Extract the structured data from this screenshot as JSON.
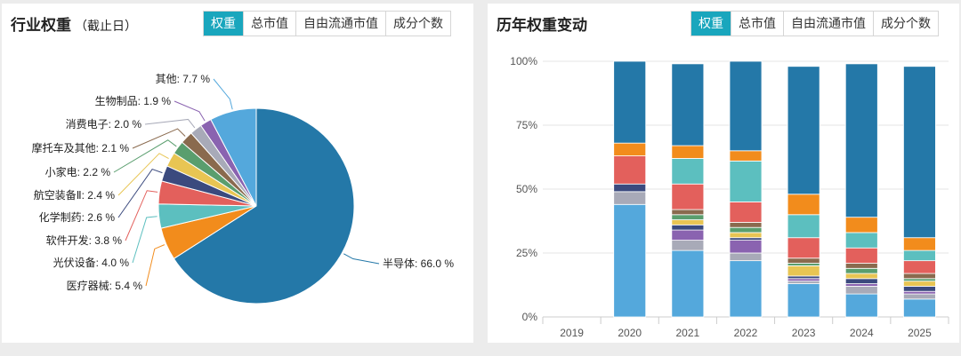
{
  "left_panel": {
    "title": "行业权重",
    "subtitle": "（截止日）",
    "tabs": [
      "权重",
      "总市值",
      "自由流通市值",
      "成分个数"
    ],
    "active_tab": 0
  },
  "right_panel": {
    "title": "历年权重变动",
    "tabs": [
      "权重",
      "总市值",
      "自由流通市值",
      "成分个数"
    ],
    "active_tab": 0
  },
  "chart_data": [
    {
      "type": "pie",
      "slices": [
        {
          "label": "半导体: 66.0 %",
          "value": 66.0,
          "color": "#2478a8"
        },
        {
          "label": "医疗器械: 5.4 %",
          "value": 5.4,
          "color": "#f28c1c"
        },
        {
          "label": "光伏设备: 4.0 %",
          "value": 4.0,
          "color": "#5cbfbf"
        },
        {
          "label": "软件开发: 3.8 %",
          "value": 3.8,
          "color": "#e3605c"
        },
        {
          "label": "化学制药: 2.6 %",
          "value": 2.6,
          "color": "#3b4a7e"
        },
        {
          "label": "航空装备Ⅱ: 2.4 %",
          "value": 2.4,
          "color": "#e8c553"
        },
        {
          "label": "小家电: 2.2 %",
          "value": 2.2,
          "color": "#5a9e6e"
        },
        {
          "label": "摩托车及其他: 2.1 %",
          "value": 2.1,
          "color": "#8a6a4e"
        },
        {
          "label": "消费电子: 2.0 %",
          "value": 2.0,
          "color": "#a8aab8"
        },
        {
          "label": "生物制品: 1.9 %",
          "value": 1.9,
          "color": "#8a63b0"
        },
        {
          "label": "其他: 7.7 %",
          "value": 7.7,
          "color": "#54a8dc"
        }
      ]
    },
    {
      "type": "bar",
      "stacked": true,
      "categories": [
        "2019",
        "2020",
        "2021",
        "2022",
        "2023",
        "2024",
        "2025"
      ],
      "y_ticks": [
        "0%",
        "25%",
        "50%",
        "75%",
        "100%"
      ],
      "ylim": [
        0,
        100
      ],
      "grid": "horizontal",
      "segment_colors": [
        "#54a8dc",
        "#a8aab8",
        "#8a63b0",
        "#3b4a7e",
        "#e8c553",
        "#5a9e6e",
        "#8a6a4e",
        "#e3605c",
        "#5cbfbf",
        "#f28c1c",
        "#2478a8"
      ],
      "stacks": [
        [],
        [
          44,
          5,
          0,
          3,
          0,
          0,
          0,
          11,
          0,
          5,
          32
        ],
        [
          26,
          4,
          4,
          2,
          2,
          2,
          2,
          10,
          10,
          5,
          32
        ],
        [
          22,
          3,
          5,
          1,
          2,
          2,
          2,
          8,
          16,
          4,
          35
        ],
        [
          13,
          1,
          1,
          1,
          4,
          1,
          2,
          8,
          9,
          8,
          50
        ],
        [
          9,
          3,
          1,
          2,
          2,
          2,
          2,
          6,
          6,
          6,
          60
        ],
        [
          7,
          2,
          1,
          2,
          2,
          1,
          2,
          5,
          4,
          5,
          67
        ]
      ]
    }
  ]
}
